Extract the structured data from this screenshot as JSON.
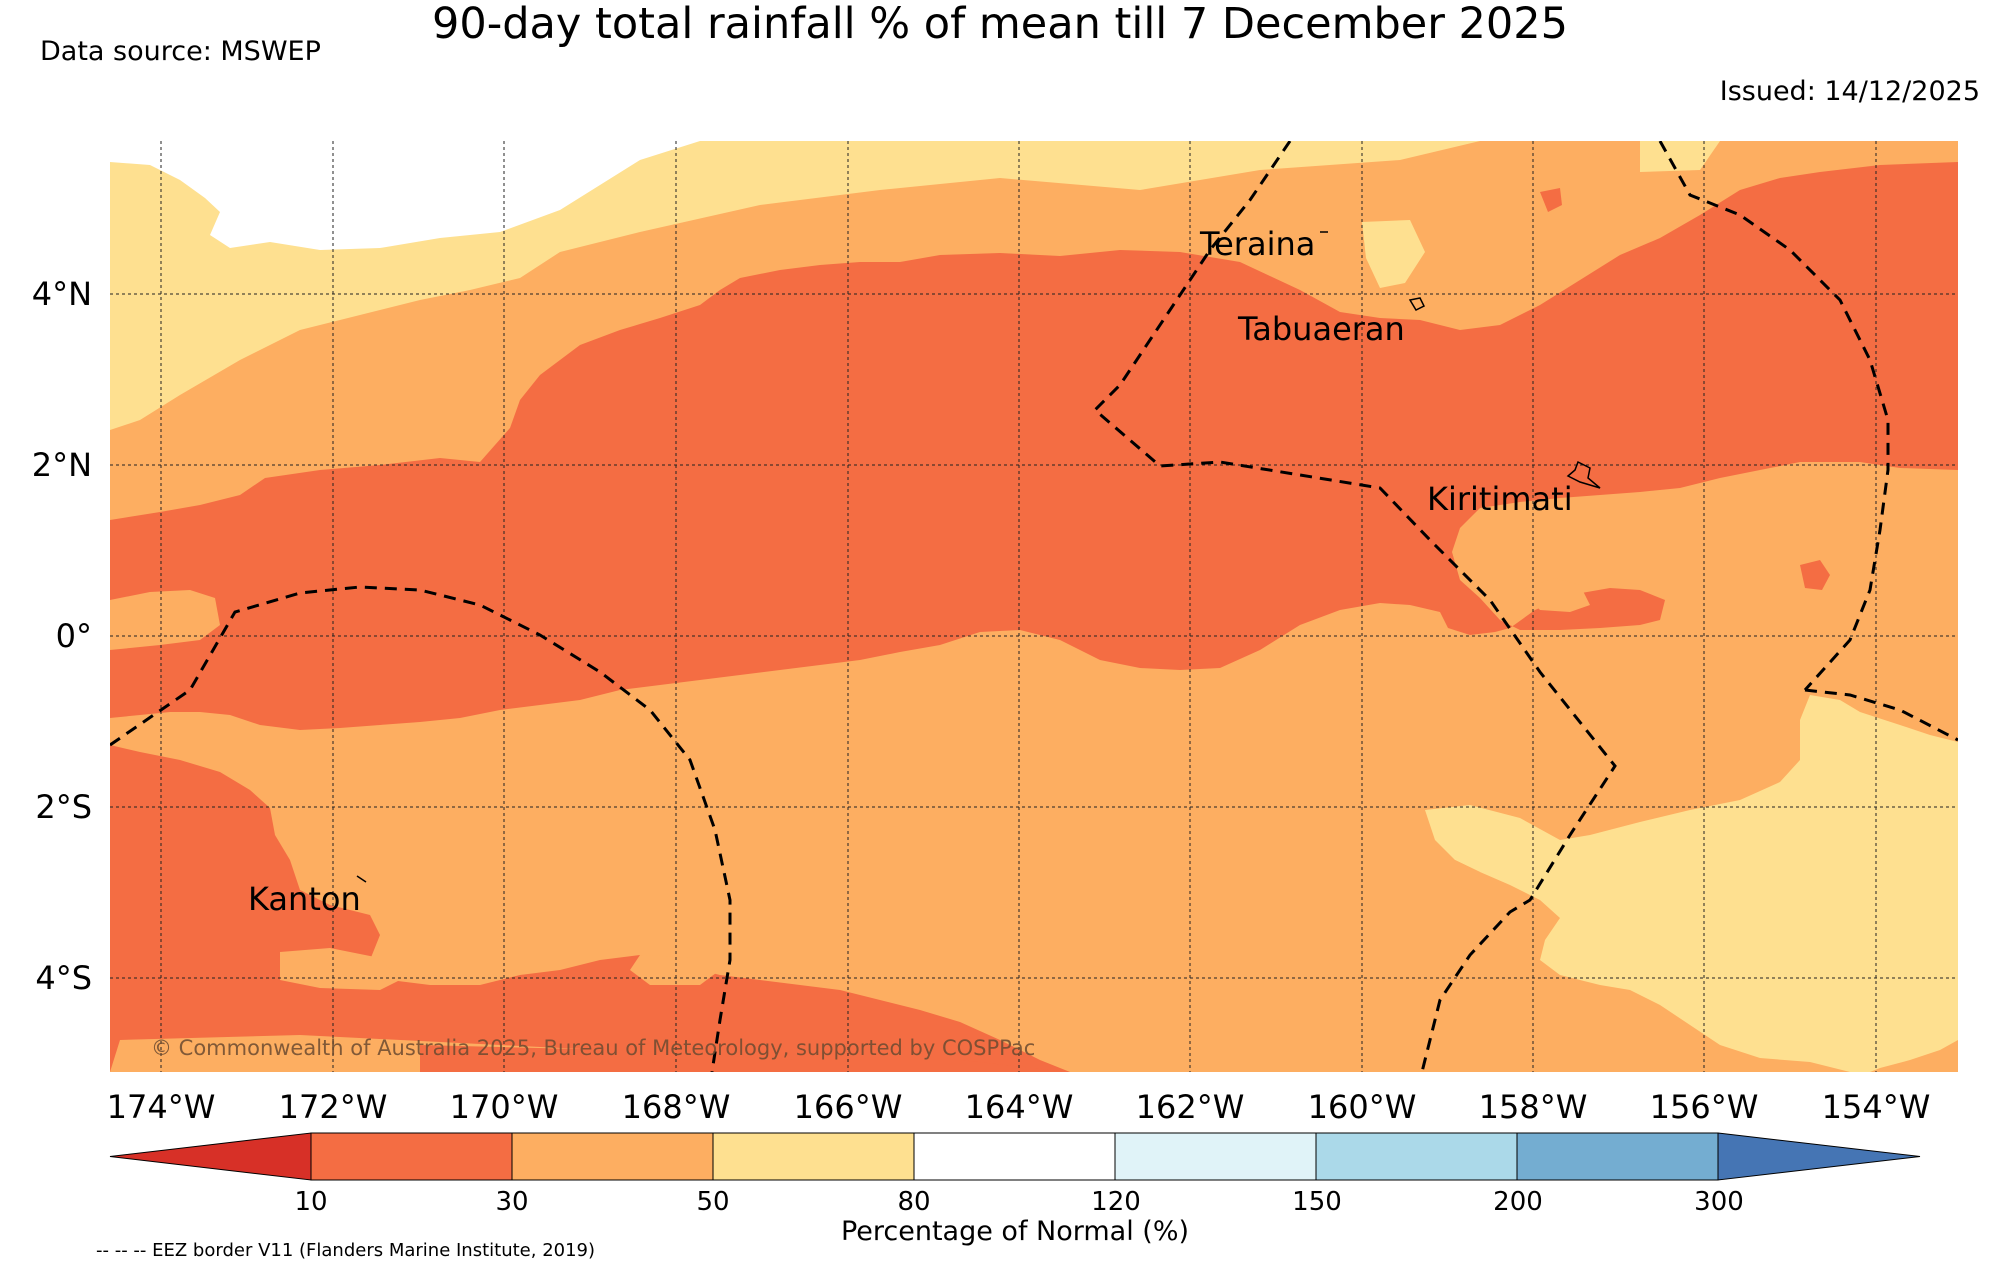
{
  "title": "90-day total rainfall % of mean till 7 December 2025",
  "data_source": "Data source: MSWEP",
  "issued": "Issued: 14/12/2025",
  "copyright": "© Commonwealth of Australia 2025, Bureau of Meteorology, supported by COSPPac",
  "footnote": "-- -- -- EEZ border V11 (Flanders Marine Institute, 2019)",
  "colorbar_label": "Percentage of Normal (%)",
  "lon_labels": [
    "174°W",
    "172°W",
    "170°W",
    "168°W",
    "166°W",
    "164°W",
    "162°W",
    "160°W",
    "158°W",
    "156°W",
    "154°W"
  ],
  "lat_labels": [
    "4°N",
    "2°N",
    "0°",
    "2°S",
    "4°S"
  ],
  "places": {
    "teraina": "Teraina",
    "tabuaeran": "Tabuaeran",
    "kiritimati": "Kiritimati",
    "kanton": "Kanton"
  },
  "legend": {
    "ticks": [
      "10",
      "30",
      "50",
      "80",
      "120",
      "150",
      "200",
      "300"
    ],
    "colors": [
      "#d73027",
      "#f46d43",
      "#fdae61",
      "#fee090",
      "#ffffff",
      "#e0f3f8",
      "#abd9e9",
      "#74add1",
      "#4575b4"
    ]
  },
  "colors": {
    "c10_30": "#f46d43",
    "c30_50": "#fdae61",
    "c50_80": "#fee090",
    "c80_120": "#ffffff"
  }
}
